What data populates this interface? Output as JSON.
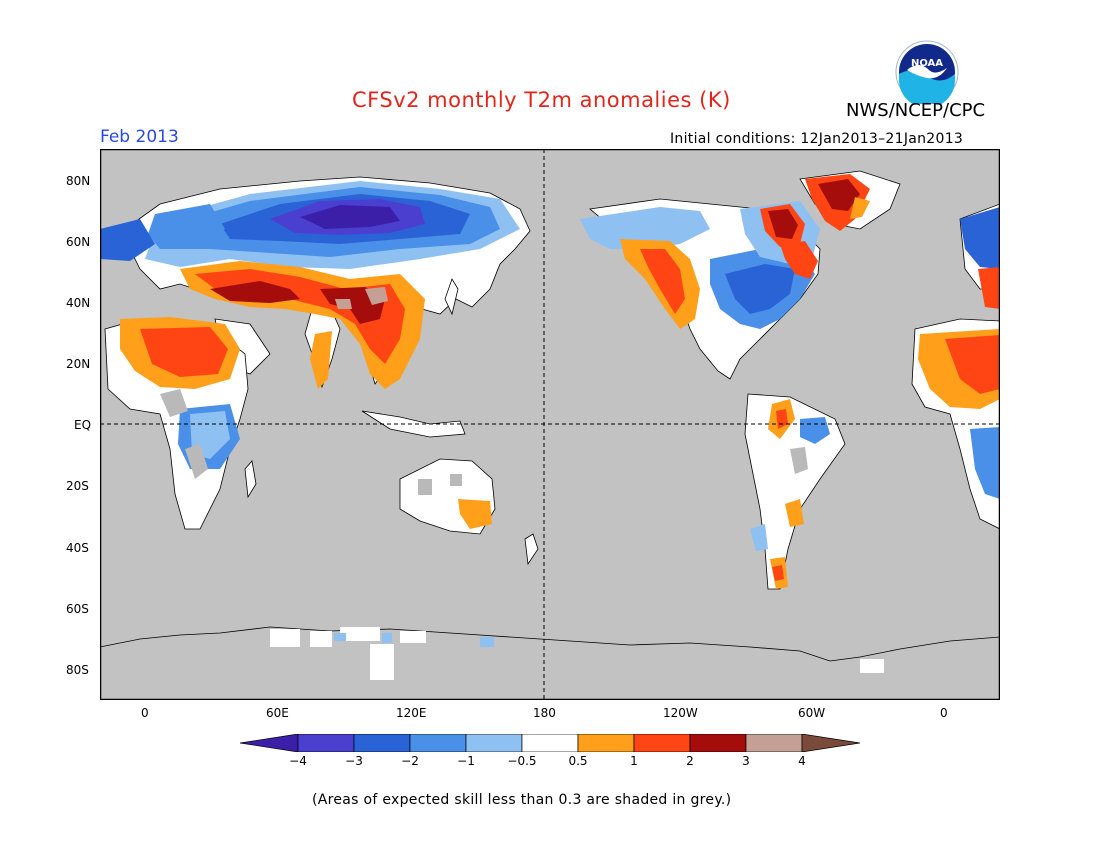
{
  "title": "CFSv2 monthly T2m anomalies (K)",
  "agency": "NWS/NCEP/CPC",
  "logo_text": "NOAA",
  "month": "Feb 2013",
  "initial_conditions": "Initial conditions: 12Jan2013–21Jan2013",
  "lat_labels": [
    "80N",
    "60N",
    "40N",
    "20N",
    "EQ",
    "20S",
    "40S",
    "60S",
    "80S"
  ],
  "lon_labels": [
    "0",
    "60E",
    "120E",
    "180",
    "120W",
    "60W",
    "0"
  ],
  "colorbar": {
    "labels": [
      "−4",
      "−3",
      "−2",
      "−1",
      "−0.5",
      "0.5",
      "1",
      "2",
      "3",
      "4"
    ],
    "colors": [
      "#3c1fa8",
      "#4b3fd0",
      "#2a63d6",
      "#4a8fe8",
      "#8fc0f2",
      "#ffffff",
      "#ff9f1a",
      "#ff4513",
      "#a50d0d",
      "#c4a094",
      "#7a4b3a"
    ]
  },
  "colors": {
    "ocean": "#c2c2c2",
    "land_neutral": "#ffffff",
    "low_skill": "#b9b9b9",
    "title": "#e1261c",
    "month": "#2a49d8"
  },
  "footnote": "(Areas of expected skill less than 0.3 are shaded in grey.)"
}
